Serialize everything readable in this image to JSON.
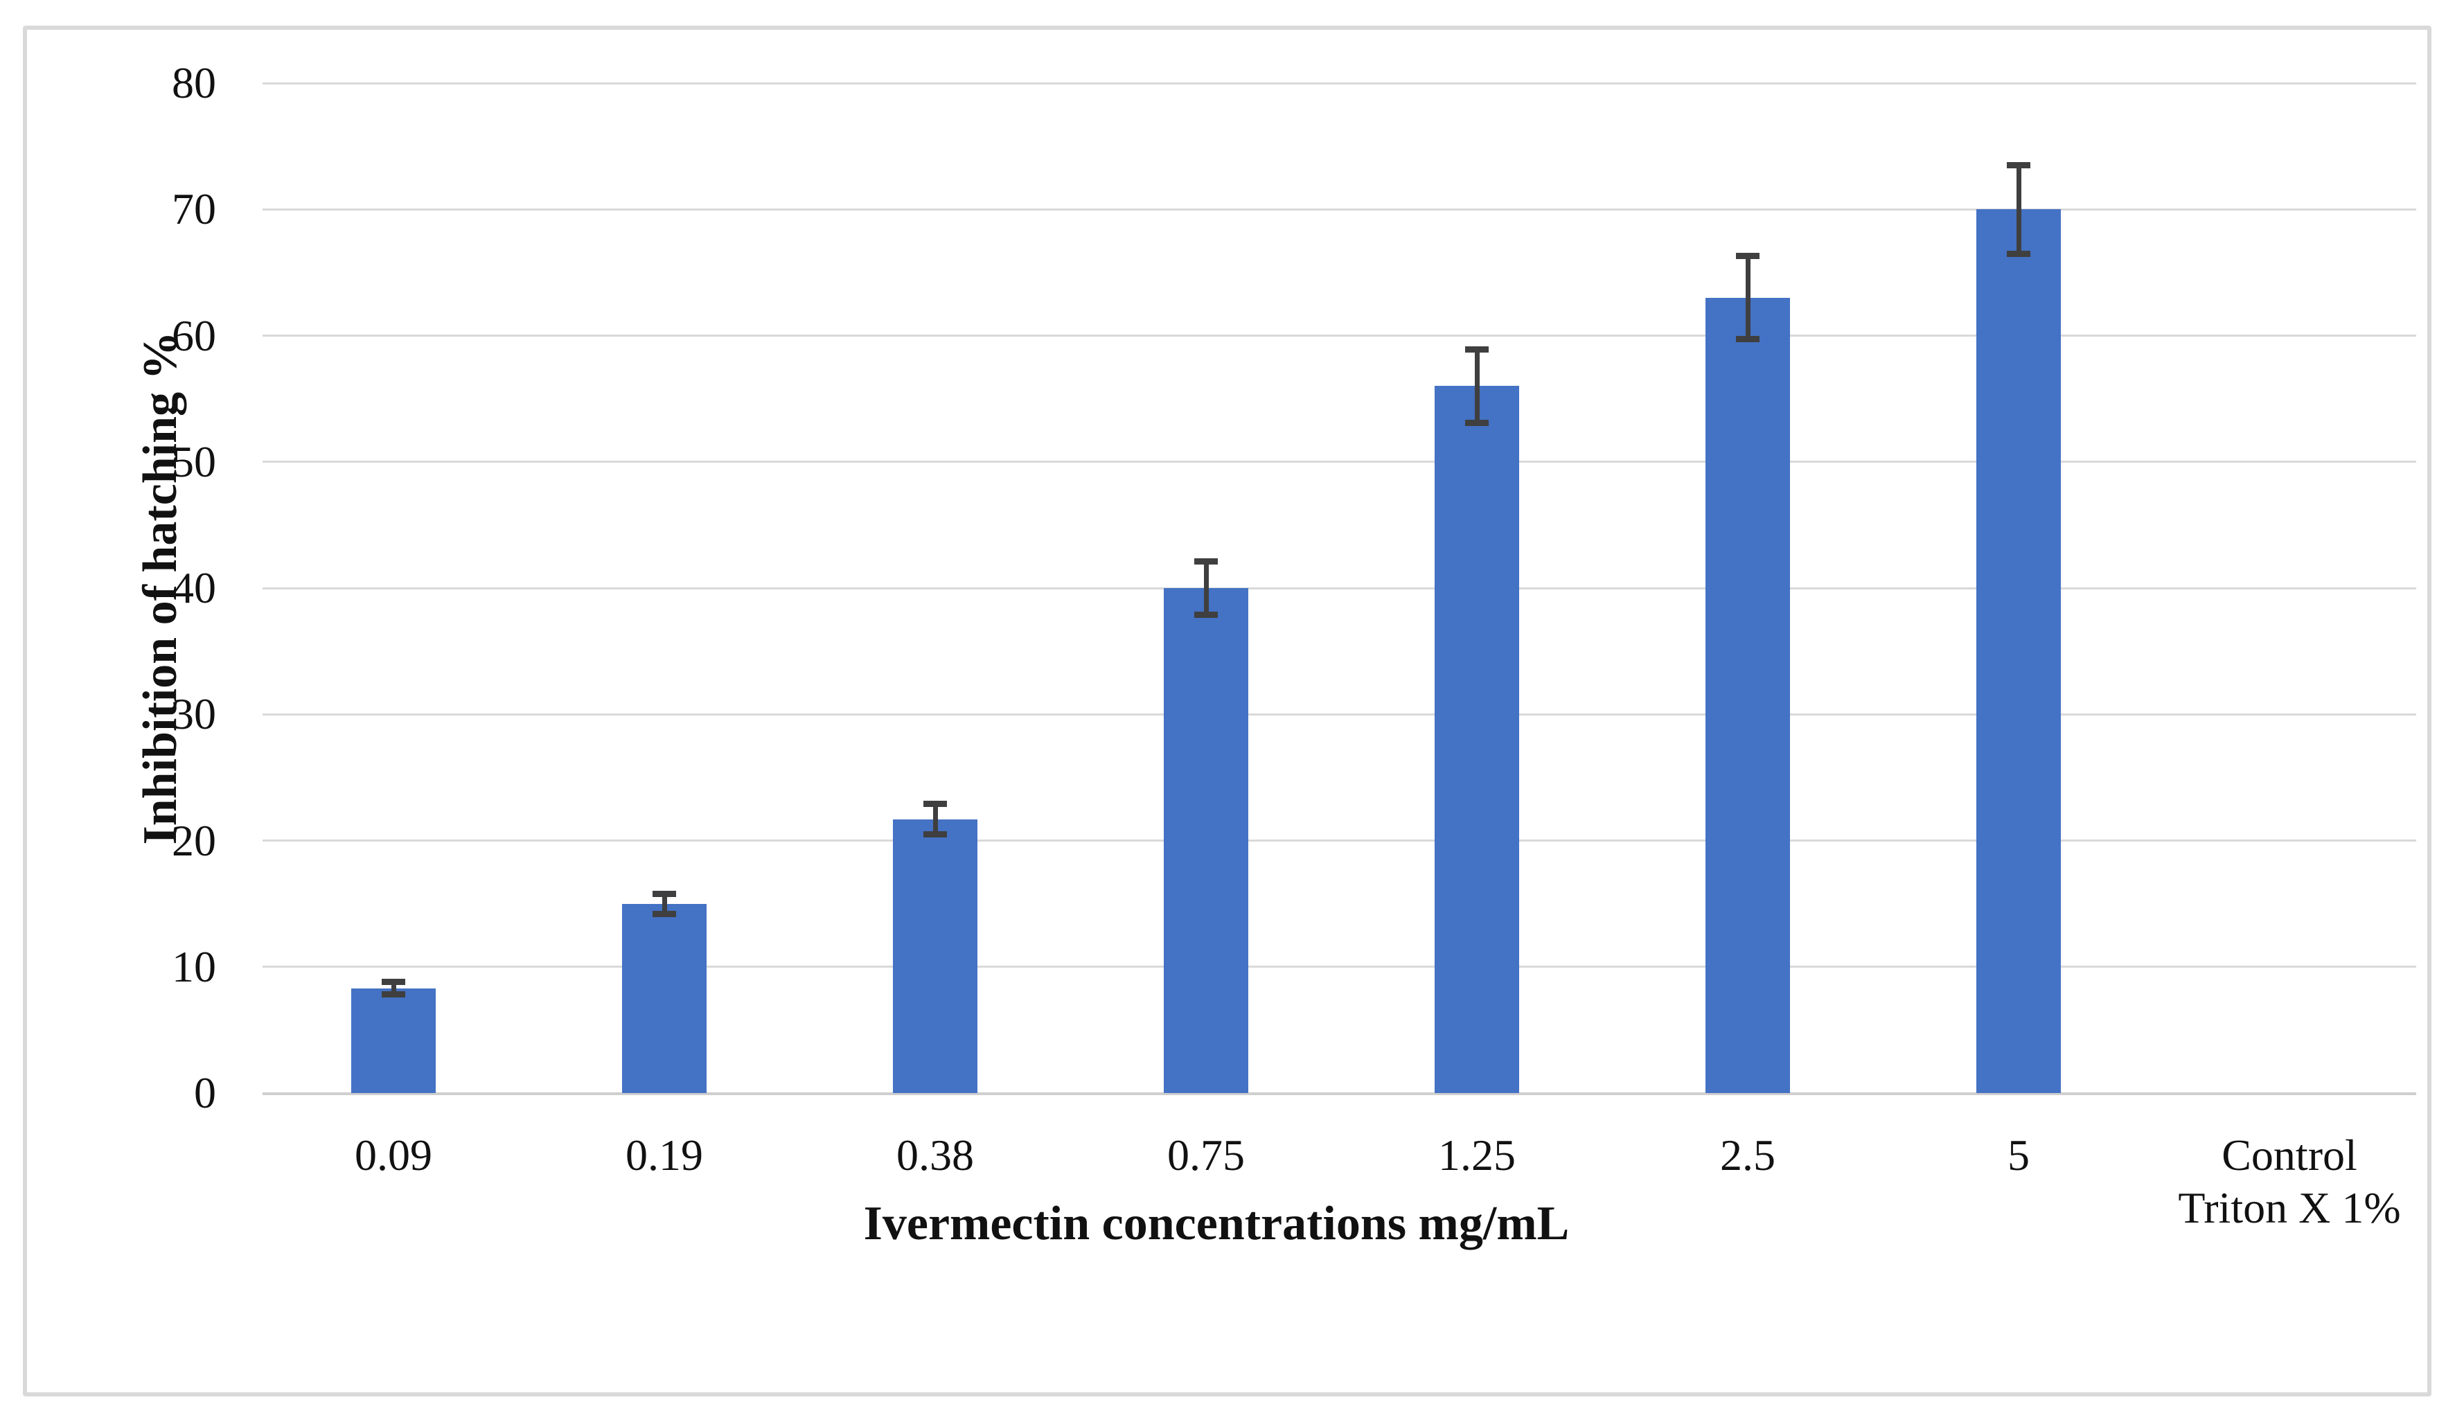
{
  "figure": {
    "background": "#ffffff",
    "frame_border_color": "#d9d9d9"
  },
  "chart_data": {
    "type": "bar",
    "title": "",
    "xlabel": "Ivermectin concentrations mg/mL",
    "ylabel": "Inhibition of hatching %",
    "categories": [
      [
        "0.09"
      ],
      [
        "0.19"
      ],
      [
        "0.38"
      ],
      [
        "0.75"
      ],
      [
        "1.25"
      ],
      [
        "2.5"
      ],
      [
        "5"
      ],
      [
        "Control",
        "Triton X 1%"
      ]
    ],
    "series": [
      {
        "name": "Inhibition of hatching %",
        "values": [
          8.3,
          15,
          21.7,
          40,
          56,
          63,
          70,
          0
        ],
        "error_plus_minus": [
          0.5,
          0.8,
          1.2,
          2.1,
          2.9,
          3.3,
          3.5,
          0
        ]
      }
    ],
    "ylim": [
      0,
      80
    ],
    "yticks": [
      0,
      10,
      20,
      30,
      40,
      50,
      60,
      70,
      80
    ],
    "grid": "horizontal",
    "legend_position": "none",
    "colors": {
      "bar": "#4472c4",
      "error_bar": "#3f3f3f",
      "gridline": "#d9d9d9",
      "axis_text": "#111111"
    }
  }
}
